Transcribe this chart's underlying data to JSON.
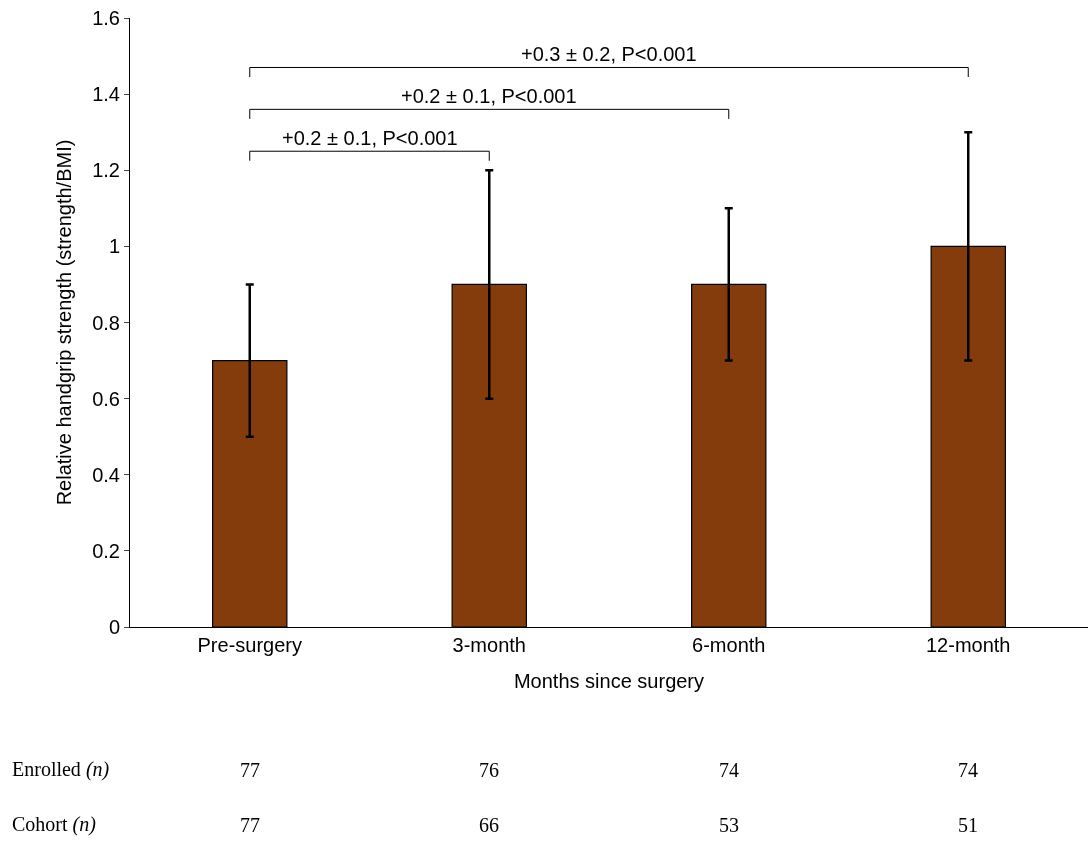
{
  "chart_data": {
    "type": "bar",
    "xlabel": "Months since surgery",
    "ylabel": "Relative handgrip strength (strength/BMI)",
    "categories": [
      "Pre-surgery",
      "3-month",
      "6-month",
      "12-month"
    ],
    "values": [
      0.7,
      0.9,
      0.9,
      1.0
    ],
    "errors": [
      0.2,
      0.3,
      0.2,
      0.3
    ],
    "color": "#843c0c",
    "ylim": [
      0,
      1.6
    ],
    "yticks": [
      0,
      0.2,
      0.4,
      0.6,
      0.8,
      1,
      1.2,
      1.4,
      1.6
    ],
    "grid": false,
    "annotations": [
      "+0.2 ± 0.1, P<0.001",
      "+0.2 ± 0.1, P<0.001",
      "+0.3 ± 0.2, P<0.001",
      "Enrolled (n)",
      "77",
      "76",
      "74",
      "74",
      "Cohort (n)",
      "77",
      "66",
      "53",
      "51"
    ]
  }
}
